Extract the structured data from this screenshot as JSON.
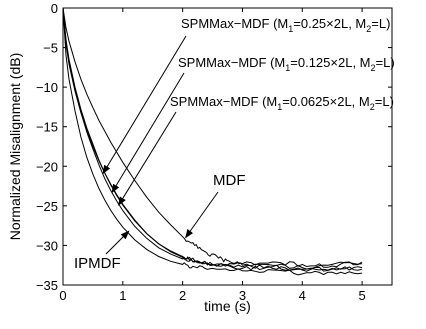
{
  "chart_data": {
    "type": "line",
    "xlabel": "time (s)",
    "ylabel": "Normalized Misalignment (dB)",
    "xlim": [
      0,
      5.5
    ],
    "ylim": [
      -35,
      0
    ],
    "xticks": [
      0,
      1,
      2,
      3,
      4,
      5
    ],
    "yticks": [
      0,
      -5,
      -10,
      -15,
      -20,
      -25,
      -30,
      -35
    ],
    "grid": false,
    "series": [
      {
        "name": "SPMMax-MDF (M1=0.25×2L, M2=L)",
        "x": [
          0,
          0.05,
          0.1,
          0.2,
          0.3,
          0.4,
          0.5,
          0.6,
          0.7,
          0.8,
          0.9,
          1.0,
          1.2,
          1.4,
          1.6,
          1.8,
          2.0,
          2.2,
          2.5,
          3.0,
          3.5,
          4.0,
          4.5,
          5.0
        ],
        "y": [
          0,
          -4,
          -6.5,
          -10,
          -12.8,
          -15.2,
          -17.2,
          -19.2,
          -20.9,
          -22.4,
          -23.7,
          -24.9,
          -26.9,
          -28.5,
          -29.8,
          -30.7,
          -31.4,
          -31.9,
          -32.4,
          -32.7,
          -32.5,
          -32.8,
          -32.4,
          -32.3
        ]
      },
      {
        "name": "SPMMax-MDF (M1=0.125×2L, M2=L)",
        "x": [
          0,
          0.05,
          0.1,
          0.2,
          0.3,
          0.4,
          0.5,
          0.6,
          0.7,
          0.8,
          0.9,
          1.0,
          1.2,
          1.4,
          1.6,
          1.8,
          2.0,
          2.2,
          2.5,
          3.0,
          3.5,
          4.0,
          4.5,
          5.0
        ],
        "y": [
          0,
          -4.3,
          -6.8,
          -10.3,
          -13.2,
          -15.7,
          -17.8,
          -19.8,
          -21.6,
          -23.1,
          -24.4,
          -25.6,
          -27.6,
          -29.1,
          -30.3,
          -31.1,
          -31.7,
          -32.1,
          -32.5,
          -32.9,
          -32.7,
          -33.1,
          -33.0,
          -32.8
        ]
      },
      {
        "name": "SPMMax-MDF (M1=0.0625×2L, M2=L)",
        "x": [
          0,
          0.05,
          0.1,
          0.2,
          0.3,
          0.4,
          0.5,
          0.6,
          0.7,
          0.8,
          0.9,
          1.0,
          1.2,
          1.4,
          1.6,
          1.8,
          2.0,
          2.2,
          2.5,
          3.0,
          3.5,
          4.0,
          4.5,
          5.0
        ],
        "y": [
          0,
          -4.6,
          -7.1,
          -10.5,
          -13.2,
          -15.5,
          -17.5,
          -19.3,
          -20.9,
          -22.3,
          -23.6,
          -24.8,
          -26.8,
          -28.5,
          -29.8,
          -30.8,
          -31.5,
          -32.0,
          -32.4,
          -32.3,
          -32.1,
          -32.4,
          -32.6,
          -32.1
        ]
      },
      {
        "name": "MDF",
        "x": [
          0,
          0.05,
          0.1,
          0.2,
          0.3,
          0.4,
          0.5,
          0.6,
          0.8,
          1.0,
          1.2,
          1.4,
          1.6,
          1.8,
          2.0,
          2.2,
          2.4,
          2.6,
          2.8,
          3.0,
          3.5,
          4.0,
          4.5,
          5.0
        ],
        "y": [
          0,
          -2.5,
          -4.2,
          -6.8,
          -9.0,
          -10.9,
          -12.6,
          -14.2,
          -17.0,
          -19.5,
          -21.8,
          -23.9,
          -25.8,
          -27.4,
          -28.9,
          -30.0,
          -30.9,
          -31.6,
          -32.1,
          -32.5,
          -32.9,
          -33.0,
          -32.9,
          -33.0
        ]
      },
      {
        "name": "IPMDF",
        "x": [
          0,
          0.05,
          0.1,
          0.2,
          0.3,
          0.4,
          0.5,
          0.6,
          0.7,
          0.8,
          0.9,
          1.0,
          1.2,
          1.4,
          1.6,
          1.8,
          2.0,
          2.2,
          2.5,
          3.0,
          3.5,
          4.0,
          4.5,
          5.0
        ],
        "y": [
          0,
          -6,
          -9,
          -13,
          -16.3,
          -18.9,
          -21.0,
          -22.8,
          -24.3,
          -25.6,
          -26.7,
          -27.7,
          -29.3,
          -30.5,
          -31.4,
          -32.0,
          -32.4,
          -32.7,
          -32.9,
          -33.2,
          -33.1,
          -33.6,
          -33.4,
          -33.5
        ]
      }
    ],
    "annotations": [
      {
        "label_parts": [
          "SPMMax−MDF (M",
          "1",
          "=0.25×2L, M",
          "2",
          "=L)"
        ],
        "target": {
          "x": 0.67,
          "y": -20.9
        }
      },
      {
        "label_parts": [
          "SPMMax−MDF (M",
          "1",
          "=0.125×2L, M",
          "2",
          "=L)"
        ],
        "target": {
          "x": 0.82,
          "y": -23.3
        }
      },
      {
        "label_parts": [
          "SPMMax−MDF (M",
          "1",
          "=0.0625×2L, M",
          "2",
          "=L)"
        ],
        "target": {
          "x": 0.93,
          "y": -24.9
        }
      },
      {
        "label_parts": [
          "MDF"
        ],
        "target": {
          "x": 2.05,
          "y": -29.0
        }
      },
      {
        "label_parts": [
          "IPMDF"
        ],
        "target": {
          "x": 1.1,
          "y": -28.2
        }
      }
    ]
  }
}
